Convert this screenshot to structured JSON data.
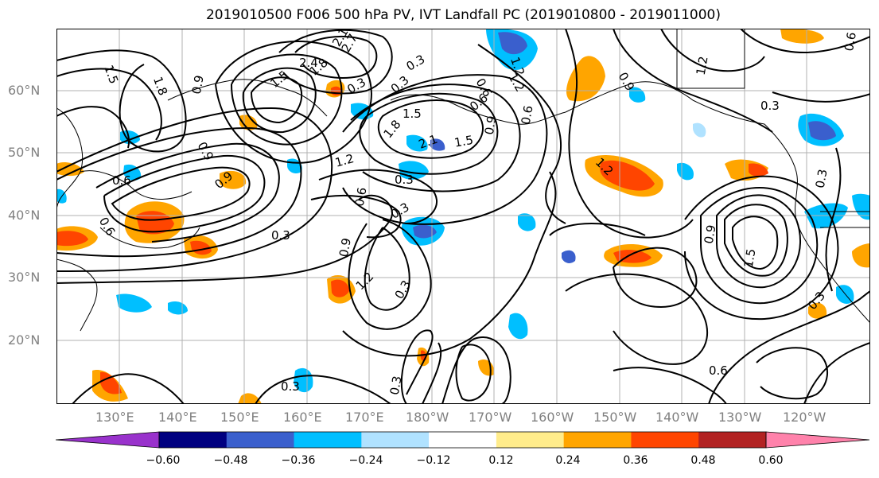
{
  "title": "2019010500 F006 500 hPa PV, IVT Landfall PC (2019010800 - 2019011000)",
  "lat_labels": [
    "60°N",
    "50°N",
    "40°N",
    "30°N",
    "20°N"
  ],
  "lon_labels": [
    "130°E",
    "140°E",
    "150°E",
    "160°E",
    "170°E",
    "180°W",
    "170°W",
    "160°W",
    "150°W",
    "140°W",
    "130°W",
    "120°W"
  ],
  "contour_labels": [
    "1.5",
    "1.8",
    "0.9",
    "2.4",
    "2.1",
    "2.7",
    "1.5",
    "0.3",
    "1.8",
    "0.9",
    "1.5",
    "2.1",
    "0.9",
    "1.8",
    "1.2",
    "0.6",
    "0.3",
    "0.3",
    "0.9",
    "0.6",
    "0.6",
    "1.2",
    "1.5",
    "0.9",
    "1.2",
    "0.3",
    "0.3",
    "0.3",
    "0.3",
    "0.3",
    "0.9",
    "1.5",
    "0.3",
    "0.3",
    "0.6",
    "0.3",
    "0.3",
    "1.2",
    "0.6",
    "0.9",
    "1.2",
    "0.6",
    "0.6",
    "1.2",
    "0.6"
  ],
  "colorbar": {
    "colors": [
      "#9932cc",
      "#000080",
      "#3a5fcd",
      "#00bfff",
      "#b0e2ff",
      "#ffffff",
      "#ffec8b",
      "#ffa500",
      "#ff4500",
      "#b22222",
      "#ff82ab"
    ],
    "tick_labels": [
      "−0.60",
      "−0.48",
      "−0.36",
      "−0.24",
      "−0.12",
      "0.12",
      "0.24",
      "0.36",
      "0.48",
      "0.60"
    ]
  },
  "colors": {
    "contour": "#000000",
    "coast": "#000000",
    "grid": "#b0b0b0",
    "label": "#808080"
  }
}
